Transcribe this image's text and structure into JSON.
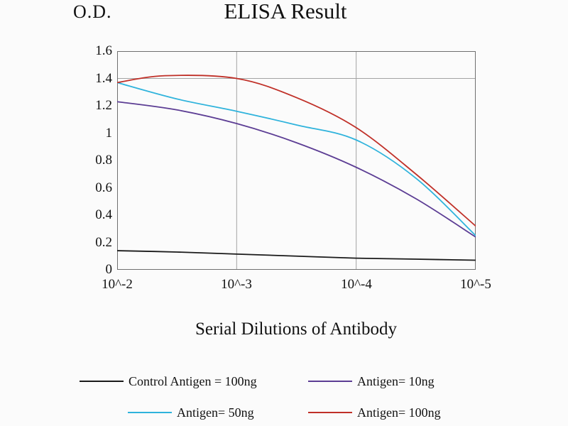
{
  "labels": {
    "y_unit": "O.D.",
    "title": "ELISA Result",
    "x_axis": "Serial Dilutions of Antibody"
  },
  "y_tick_display": [
    "1.6",
    "1.4",
    "1.2",
    "1",
    "0.8",
    "0.6",
    "0.4",
    "0.2",
    "0"
  ],
  "chart_data": {
    "type": "line",
    "title": "ELISA Result",
    "xlabel": "Serial Dilutions of Antibody",
    "ylabel": "O.D.",
    "x_tick_labels": [
      "10^-2",
      "10^-3",
      "10^-4",
      "10^-5"
    ],
    "y_ticks": [
      0,
      0.2,
      0.4,
      0.6,
      0.8,
      1,
      1.2,
      1.4,
      1.6
    ],
    "ylim": [
      0,
      1.6
    ],
    "grid": {
      "vertical_at_ticks": true,
      "horizontal_line_at": 1.4
    },
    "legend_position": "bottom",
    "series": [
      {
        "name": "Control Antigen = 100ng",
        "color": "#1a1a1a",
        "points": [
          [
            0,
            0.14
          ],
          [
            0.5,
            0.13
          ],
          [
            1,
            0.115
          ],
          [
            1.5,
            0.1
          ],
          [
            2,
            0.085
          ],
          [
            2.5,
            0.078
          ],
          [
            3,
            0.07
          ]
        ]
      },
      {
        "name": "Antigen= 10ng",
        "color": "#5c3d94",
        "points": [
          [
            0,
            1.23
          ],
          [
            0.5,
            1.17
          ],
          [
            1,
            1.07
          ],
          [
            1.5,
            0.93
          ],
          [
            2,
            0.75
          ],
          [
            2.5,
            0.52
          ],
          [
            3,
            0.24
          ]
        ]
      },
      {
        "name": "Antigen= 50ng",
        "color": "#2fb3dc",
        "points": [
          [
            0,
            1.37
          ],
          [
            0.5,
            1.25
          ],
          [
            1,
            1.16
          ],
          [
            1.5,
            1.06
          ],
          [
            2,
            0.95
          ],
          [
            2.5,
            0.67
          ],
          [
            3,
            0.25
          ]
        ]
      },
      {
        "name": "Antigen= 100ng",
        "color": "#c03028",
        "points": [
          [
            0,
            1.37
          ],
          [
            0.4,
            1.42
          ],
          [
            1,
            1.4
          ],
          [
            1.5,
            1.26
          ],
          [
            2,
            1.04
          ],
          [
            2.5,
            0.7
          ],
          [
            3,
            0.32
          ]
        ]
      }
    ]
  },
  "legend": {
    "items": [
      {
        "label": "Control Antigen = 100ng",
        "color": "#1a1a1a"
      },
      {
        "label": "Antigen= 10ng",
        "color": "#5c3d94"
      },
      {
        "label": "Antigen= 50ng",
        "color": "#2fb3dc"
      },
      {
        "label": "Antigen= 100ng",
        "color": "#c03028"
      }
    ]
  }
}
